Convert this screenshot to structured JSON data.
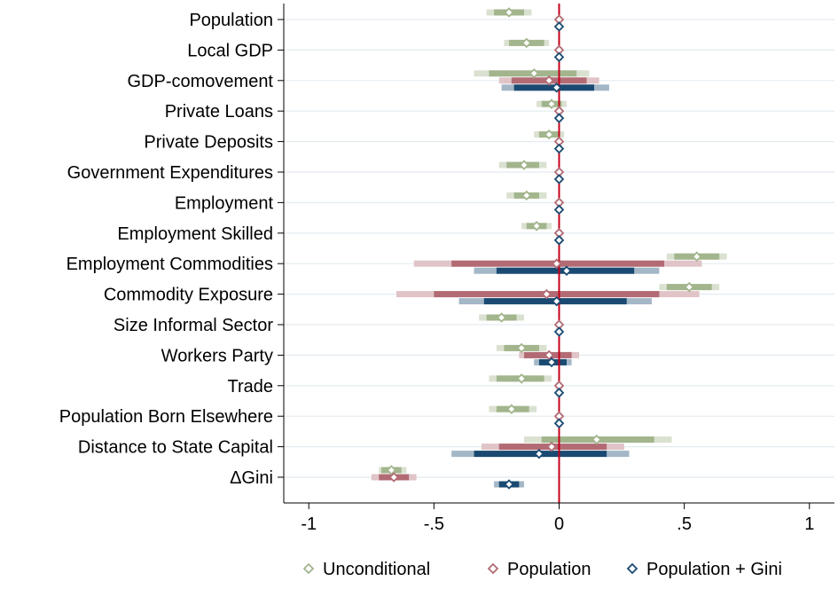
{
  "chart_data": {
    "type": "coefficient_plot",
    "title": "",
    "xlabel": "",
    "ylabel": "",
    "xlim": [
      -1.1,
      1.1
    ],
    "xticks": [
      -1,
      -0.5,
      0,
      0.5,
      1
    ],
    "xtick_labels": [
      "-1",
      "-.5",
      "0",
      ".5",
      "1"
    ],
    "reference_line": 0,
    "reference_line_color": "#c4001a",
    "grid": "horizontal",
    "legend_position": "bottom",
    "categories": [
      "Population",
      "Local GDP",
      "GDP-comovement",
      "Private Loans",
      "Private Deposits",
      "Government Expenditures",
      "Employment",
      "Employment Skilled",
      "Employment Commodities",
      "Commodity Exposure",
      "Size Informal Sector",
      "Workers Party",
      "Trade",
      "Population Born Elsewhere",
      "Distance to State Capital",
      "ΔGini"
    ],
    "series": [
      {
        "name": "Unconditional",
        "color": "#a2b58d",
        "points": [
          {
            "est": -0.2,
            "ci90": [
              -0.26,
              -0.14
            ],
            "ci95": [
              -0.29,
              -0.11
            ]
          },
          {
            "est": -0.13,
            "ci90": [
              -0.2,
              -0.06
            ],
            "ci95": [
              -0.22,
              -0.04
            ]
          },
          {
            "est": -0.1,
            "ci90": [
              -0.28,
              0.07
            ],
            "ci95": [
              -0.34,
              0.12
            ]
          },
          {
            "est": -0.03,
            "ci90": [
              -0.07,
              0.01
            ],
            "ci95": [
              -0.09,
              0.03
            ]
          },
          {
            "est": -0.04,
            "ci90": [
              -0.08,
              0.0
            ],
            "ci95": [
              -0.1,
              0.02
            ]
          },
          {
            "est": -0.14,
            "ci90": [
              -0.21,
              -0.08
            ],
            "ci95": [
              -0.24,
              -0.05
            ]
          },
          {
            "est": -0.13,
            "ci90": [
              -0.18,
              -0.08
            ],
            "ci95": [
              -0.21,
              -0.05
            ]
          },
          {
            "est": -0.09,
            "ci90": [
              -0.13,
              -0.05
            ],
            "ci95": [
              -0.15,
              -0.03
            ]
          },
          {
            "est": 0.55,
            "ci90": [
              0.46,
              0.64
            ],
            "ci95": [
              0.43,
              0.67
            ]
          },
          {
            "est": 0.52,
            "ci90": [
              0.43,
              0.61
            ],
            "ci95": [
              0.4,
              0.64
            ]
          },
          {
            "est": -0.23,
            "ci90": [
              -0.29,
              -0.17
            ],
            "ci95": [
              -0.32,
              -0.14
            ]
          },
          {
            "est": -0.15,
            "ci90": [
              -0.22,
              -0.08
            ],
            "ci95": [
              -0.25,
              -0.05
            ]
          },
          {
            "est": -0.15,
            "ci90": [
              -0.25,
              -0.06
            ],
            "ci95": [
              -0.28,
              -0.03
            ]
          },
          {
            "est": -0.19,
            "ci90": [
              -0.25,
              -0.12
            ],
            "ci95": [
              -0.28,
              -0.09
            ]
          },
          {
            "est": 0.15,
            "ci90": [
              -0.07,
              0.38
            ],
            "ci95": [
              -0.14,
              0.45
            ]
          },
          {
            "est": -0.67,
            "ci90": [
              -0.71,
              -0.63
            ],
            "ci95": [
              -0.72,
              -0.61
            ]
          }
        ]
      },
      {
        "name": "Population",
        "color": "#b26b74",
        "points": [
          {
            "est": 0.0,
            "ci90": [
              -0.01,
              0.01
            ],
            "ci95": [
              -0.01,
              0.01
            ]
          },
          {
            "est": 0.0,
            "ci90": [
              -0.01,
              0.01
            ],
            "ci95": [
              -0.01,
              0.01
            ]
          },
          {
            "est": -0.04,
            "ci90": [
              -0.19,
              0.11
            ],
            "ci95": [
              -0.24,
              0.16
            ]
          },
          {
            "est": 0.0,
            "ci90": [
              -0.01,
              0.01
            ],
            "ci95": [
              -0.01,
              0.01
            ]
          },
          {
            "est": 0.0,
            "ci90": [
              -0.01,
              0.01
            ],
            "ci95": [
              -0.01,
              0.01
            ]
          },
          {
            "est": 0.0,
            "ci90": [
              -0.01,
              0.01
            ],
            "ci95": [
              -0.01,
              0.01
            ]
          },
          {
            "est": 0.0,
            "ci90": [
              -0.01,
              0.01
            ],
            "ci95": [
              -0.01,
              0.01
            ]
          },
          {
            "est": 0.0,
            "ci90": [
              -0.01,
              0.01
            ],
            "ci95": [
              -0.01,
              0.01
            ]
          },
          {
            "est": -0.01,
            "ci90": [
              -0.43,
              0.42
            ],
            "ci95": [
              -0.58,
              0.57
            ]
          },
          {
            "est": -0.05,
            "ci90": [
              -0.5,
              0.4
            ],
            "ci95": [
              -0.65,
              0.56
            ]
          },
          {
            "est": 0.0,
            "ci90": [
              -0.01,
              0.01
            ],
            "ci95": [
              -0.01,
              0.01
            ]
          },
          {
            "est": -0.04,
            "ci90": [
              -0.14,
              0.05
            ],
            "ci95": [
              -0.16,
              0.08
            ]
          },
          {
            "est": 0.0,
            "ci90": [
              -0.01,
              0.01
            ],
            "ci95": [
              -0.01,
              0.01
            ]
          },
          {
            "est": 0.0,
            "ci90": [
              -0.01,
              0.01
            ],
            "ci95": [
              -0.01,
              0.01
            ]
          },
          {
            "est": -0.03,
            "ci90": [
              -0.24,
              0.19
            ],
            "ci95": [
              -0.31,
              0.26
            ]
          },
          {
            "est": -0.66,
            "ci90": [
              -0.72,
              -0.6
            ],
            "ci95": [
              -0.75,
              -0.57
            ]
          }
        ]
      },
      {
        "name": "Population + Gini",
        "color": "#1a4a72",
        "points": [
          {
            "est": 0.0,
            "ci90": [
              -0.01,
              0.01
            ],
            "ci95": [
              -0.01,
              0.01
            ]
          },
          {
            "est": 0.0,
            "ci90": [
              -0.01,
              0.01
            ],
            "ci95": [
              -0.01,
              0.01
            ]
          },
          {
            "est": -0.01,
            "ci90": [
              -0.18,
              0.14
            ],
            "ci95": [
              -0.23,
              0.2
            ]
          },
          {
            "est": 0.0,
            "ci90": [
              -0.01,
              0.01
            ],
            "ci95": [
              -0.01,
              0.01
            ]
          },
          {
            "est": 0.0,
            "ci90": [
              -0.01,
              0.01
            ],
            "ci95": [
              -0.01,
              0.01
            ]
          },
          {
            "est": 0.0,
            "ci90": [
              -0.01,
              0.01
            ],
            "ci95": [
              -0.01,
              0.01
            ]
          },
          {
            "est": 0.0,
            "ci90": [
              -0.01,
              0.01
            ],
            "ci95": [
              -0.01,
              0.01
            ]
          },
          {
            "est": 0.0,
            "ci90": [
              -0.01,
              0.01
            ],
            "ci95": [
              -0.01,
              0.01
            ]
          },
          {
            "est": 0.03,
            "ci90": [
              -0.25,
              0.3
            ],
            "ci95": [
              -0.34,
              0.4
            ]
          },
          {
            "est": -0.01,
            "ci90": [
              -0.3,
              0.27
            ],
            "ci95": [
              -0.4,
              0.37
            ]
          },
          {
            "est": 0.0,
            "ci90": [
              -0.01,
              0.01
            ],
            "ci95": [
              -0.01,
              0.01
            ]
          },
          {
            "est": -0.03,
            "ci90": [
              -0.08,
              0.03
            ],
            "ci95": [
              -0.1,
              0.05
            ]
          },
          {
            "est": 0.0,
            "ci90": [
              -0.01,
              0.01
            ],
            "ci95": [
              -0.01,
              0.01
            ]
          },
          {
            "est": 0.0,
            "ci90": [
              -0.01,
              0.01
            ],
            "ci95": [
              -0.01,
              0.01
            ]
          },
          {
            "est": -0.08,
            "ci90": [
              -0.34,
              0.19
            ],
            "ci95": [
              -0.43,
              0.28
            ]
          },
          {
            "est": -0.2,
            "ci90": [
              -0.24,
              -0.16
            ],
            "ci95": [
              -0.26,
              -0.14
            ]
          }
        ]
      }
    ]
  }
}
